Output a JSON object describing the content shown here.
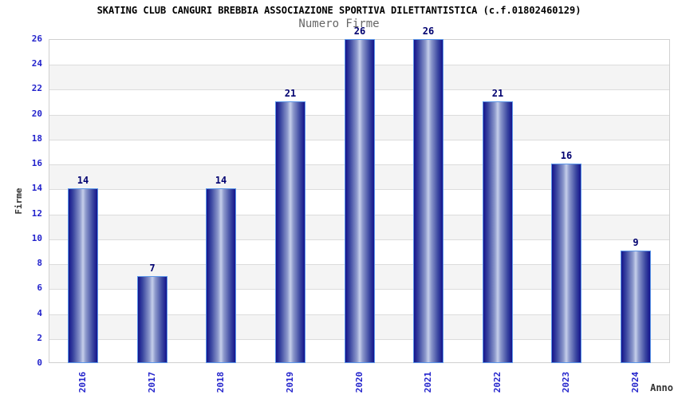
{
  "chart_data": {
    "type": "bar",
    "title": "SKATING CLUB CANGURI BREBBIA ASSOCIAZIONE SPORTIVA DILETTANTISTICA (c.f.01802460129)",
    "subtitle": "Numero Firme",
    "xlabel": "Anno",
    "ylabel": "Firme",
    "categories": [
      "2016",
      "2017",
      "2018",
      "2019",
      "2020",
      "2021",
      "2022",
      "2023",
      "2024"
    ],
    "values": [
      14,
      7,
      14,
      21,
      26,
      26,
      21,
      16,
      9
    ],
    "value_labels": [
      "14",
      "7",
      "14",
      "21",
      "26",
      "26",
      "21",
      "16",
      "9"
    ],
    "ylim": [
      0,
      26
    ],
    "ytick_step": 2,
    "yticks": [
      0,
      2,
      4,
      6,
      8,
      10,
      12,
      14,
      16,
      18,
      20,
      22,
      24,
      26
    ],
    "grid": true,
    "legend": "none",
    "colors": {
      "background": "#ffffff",
      "title_text": "#000000",
      "subtitle_text": "#666666",
      "axis_label_text": "#333333",
      "tick_text": "#2323cc",
      "value_text": "#000070",
      "band_alt": "#f4f4f4",
      "band_main": "#ffffff",
      "grid_line": "#dcdcdc",
      "plot_border": "#d0d0d0",
      "bar_edge": "#14148c",
      "bar_mid": "#c6cfea",
      "bar_border": "#5b96e8"
    }
  }
}
